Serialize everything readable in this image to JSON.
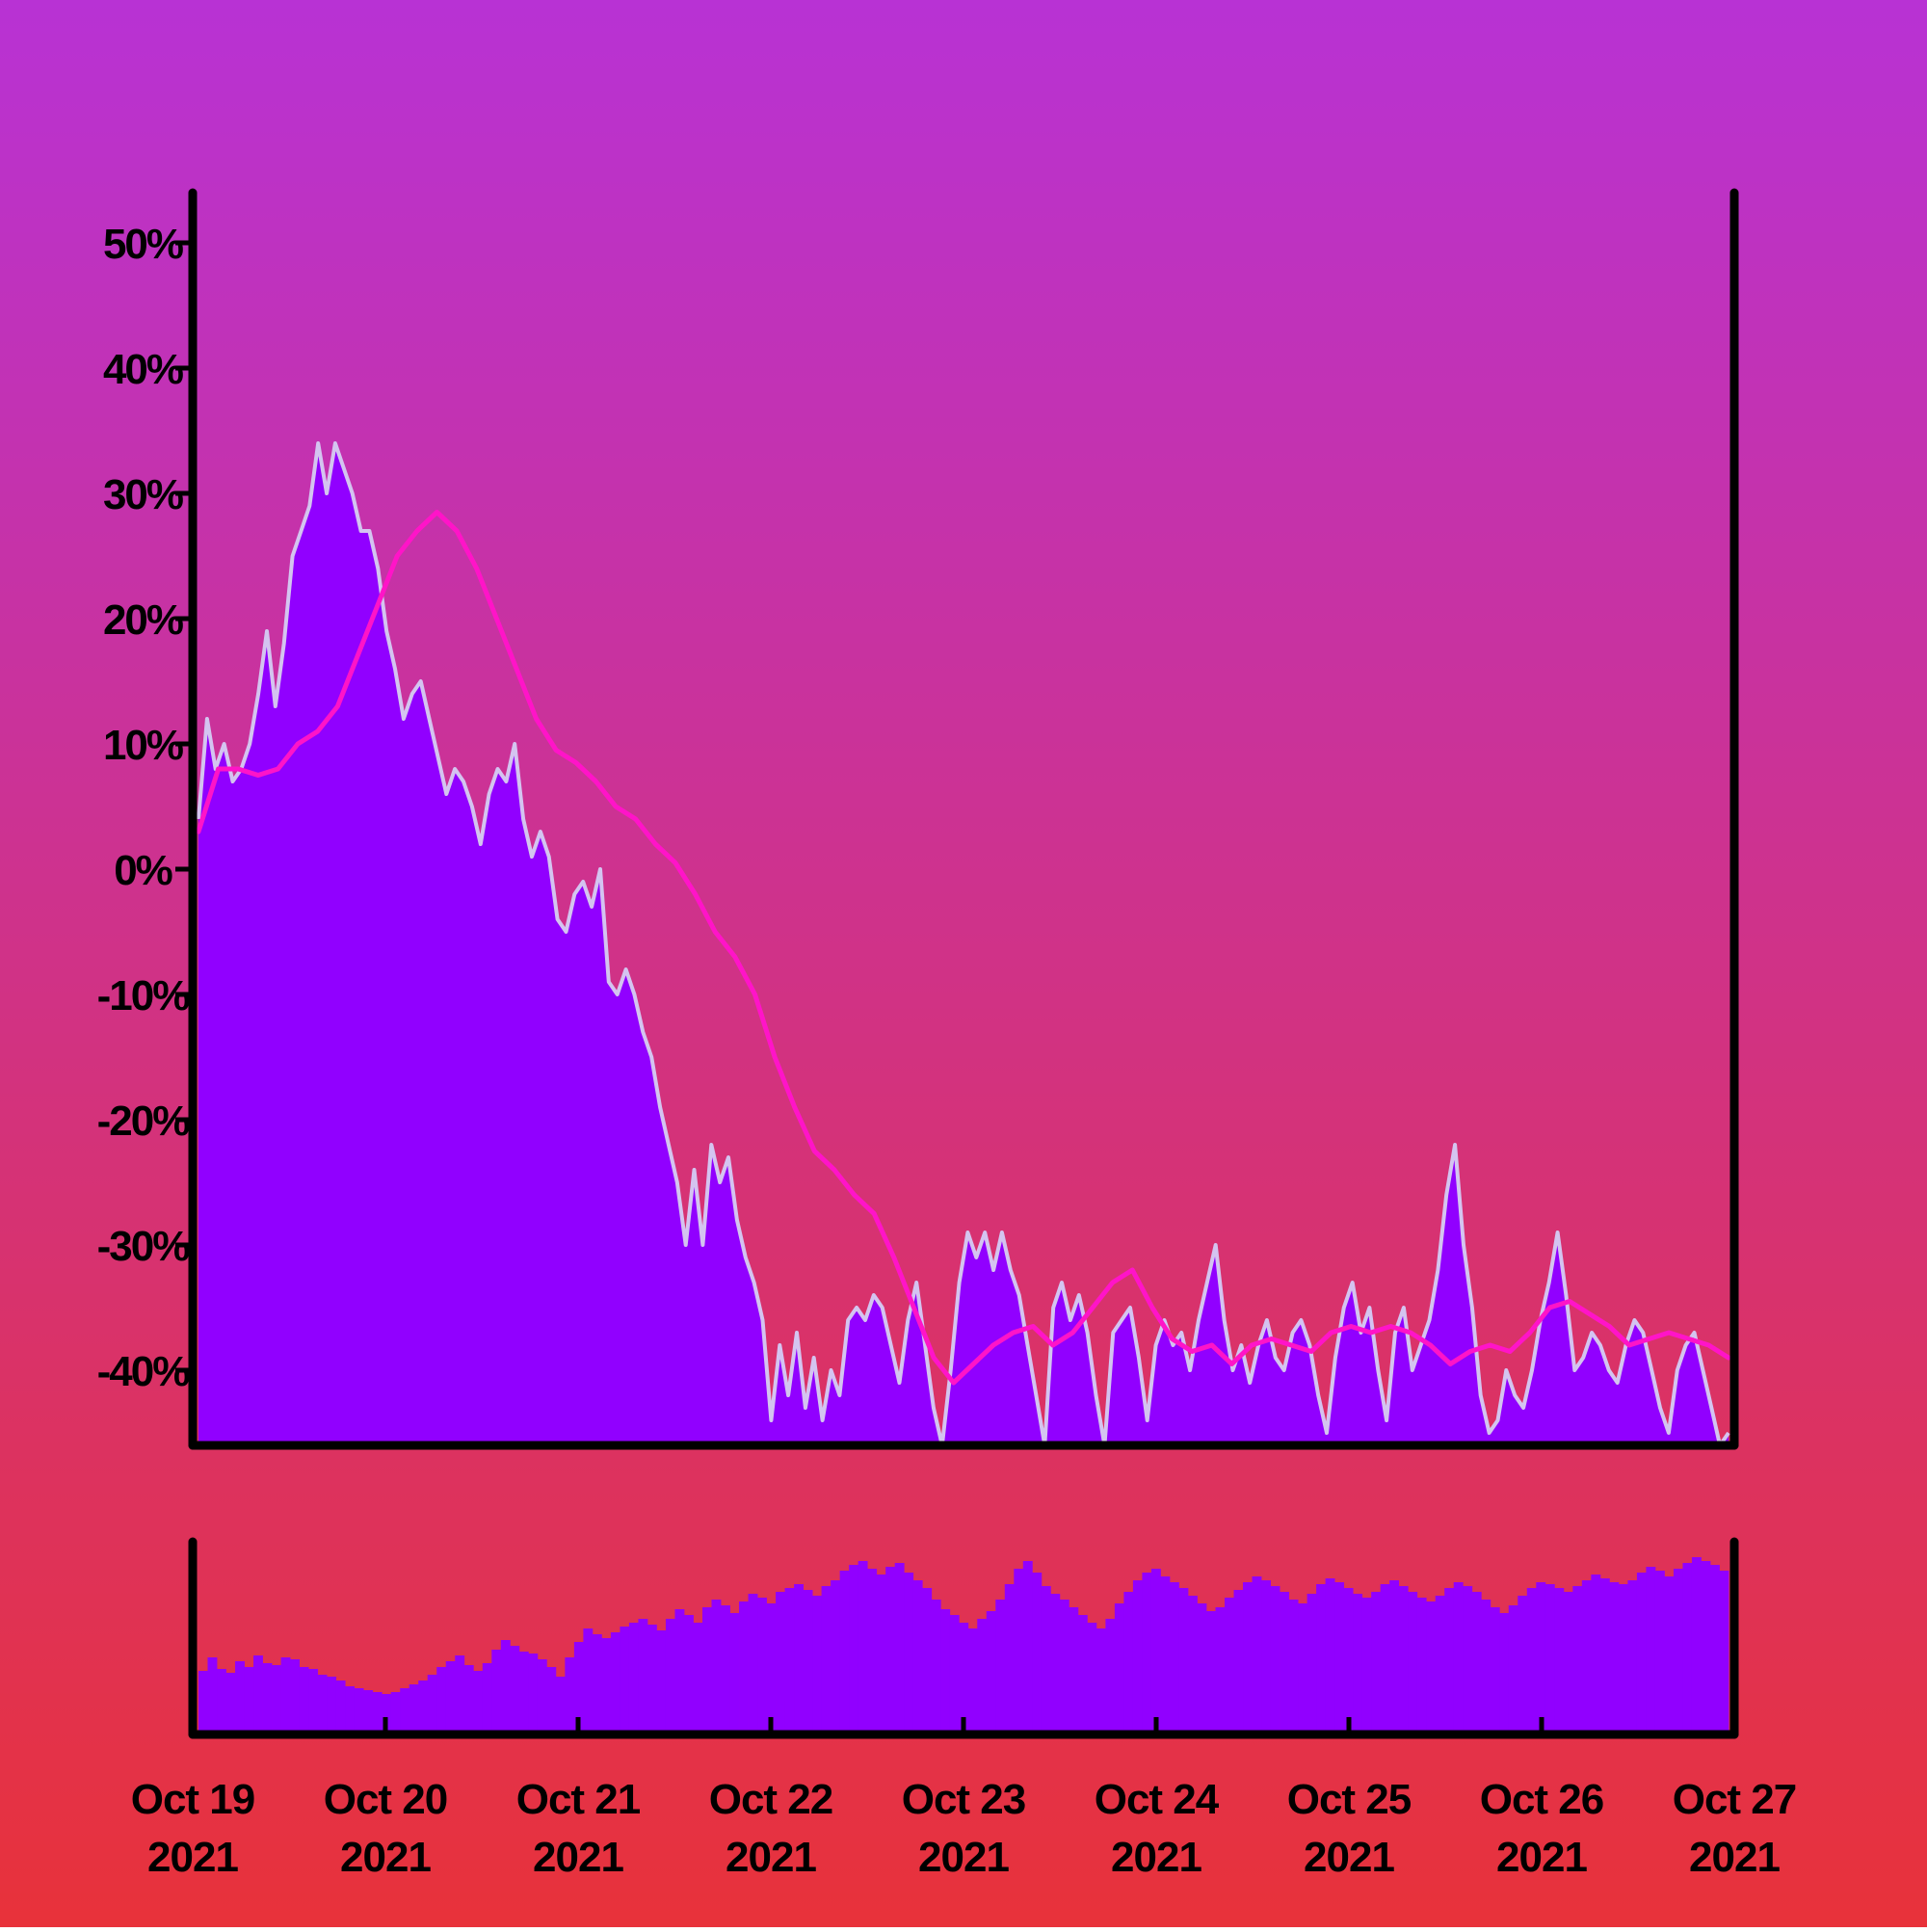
{
  "colors": {
    "background_top": "#b832d4",
    "background_bottom": "#e8323a",
    "area_fill": "#9100ff",
    "price_line": "#d4c4f0",
    "moving_average": "#ff14c8",
    "volume_bar": "#9100ff",
    "axis": "#000000"
  },
  "chart_data": {
    "type": "area",
    "price_panel": {
      "y_tick_labels": [
        "50%",
        "40%",
        "30%",
        "20%",
        "10%",
        "0%",
        "-10%",
        "-20%",
        "-30%",
        "-40%"
      ],
      "y_tick_values": [
        50,
        40,
        30,
        20,
        10,
        0,
        -10,
        -20,
        -30,
        -40
      ],
      "ylim": [
        -46,
        54
      ],
      "x_date_range": [
        "2021-10-19",
        "2021-10-27"
      ],
      "series": [
        {
          "type": "area",
          "values_pct": [
            4,
            12,
            8,
            10,
            7,
            8,
            10,
            14,
            19,
            13,
            18,
            25,
            27,
            29,
            34,
            30,
            34,
            32,
            30,
            27,
            27,
            24,
            19,
            16,
            12,
            14,
            15,
            12,
            9,
            6,
            8,
            7,
            5,
            2,
            6,
            8,
            7,
            10,
            4,
            1,
            3,
            1,
            -4,
            -5,
            -2,
            -1,
            -3,
            0,
            -9,
            -10,
            -8,
            -10,
            -13,
            -15,
            -19,
            -22,
            -25,
            -30,
            -24,
            -30,
            -22,
            -25,
            -23,
            -28,
            -31,
            -33,
            -36,
            -44,
            -38,
            -42,
            -37,
            -43,
            -39,
            -44,
            -40,
            -42,
            -36,
            -35,
            -36,
            -34,
            -35,
            -38,
            -41,
            -36,
            -33,
            -38,
            -43,
            -46,
            -40,
            -33,
            -29,
            -31,
            -29,
            -32,
            -29,
            -32,
            -34,
            -38,
            -42,
            -46,
            -35,
            -33,
            -36,
            -34,
            -37,
            -42,
            -46,
            -37,
            -36,
            -35,
            -39,
            -44,
            -38,
            -36,
            -38,
            -37,
            -40,
            -36,
            -33,
            -30,
            -36,
            -40,
            -38,
            -41,
            -38,
            -36,
            -39,
            -40,
            -37,
            -36,
            -38,
            -42,
            -45,
            -39,
            -35,
            -33,
            -37,
            -35,
            -40,
            -44,
            -37,
            -35,
            -40,
            -38,
            -36,
            -32,
            -26,
            -22,
            -30,
            -35,
            -42,
            -45,
            -44,
            -40,
            -42,
            -43,
            -40,
            -36,
            -33,
            -29,
            -34,
            -40,
            -39,
            -37,
            -38,
            -40,
            -41,
            -38,
            -36,
            -37,
            -40,
            -43,
            -45,
            -40,
            -38,
            -37,
            -40,
            -43,
            -46,
            -45
          ]
        },
        {
          "type": "line",
          "name": "",
          "values_pct": [
            3,
            8,
            8,
            7.5,
            8,
            10,
            11,
            13,
            17,
            21,
            25,
            27,
            28.5,
            27,
            24,
            20,
            16,
            12,
            9.5,
            8.5,
            7,
            5,
            4,
            2,
            0.5,
            -2,
            -5,
            -7,
            -10,
            -15,
            -19,
            -22.5,
            -24,
            -26,
            -27.5,
            -31,
            -35,
            -39,
            -41,
            -39.5,
            -38,
            -37,
            -36.5,
            -38,
            -37,
            -35,
            -33,
            -32,
            -35,
            -37.5,
            -38.5,
            -38,
            -39.5,
            -38,
            -37.5,
            -38,
            -38.5,
            -37,
            -36.5,
            -37,
            -36.5,
            -37,
            -38,
            -39.5,
            -38.5,
            -38,
            -38.5,
            -37,
            -35,
            -34.5,
            -35.5,
            -36.5,
            -38,
            -37.5,
            -37,
            -37.5,
            -38,
            -39
          ]
        }
      ]
    },
    "volume_panel": {
      "series": [
        {
          "type": "bar",
          "values_relative": [
            0.33,
            0.4,
            0.34,
            0.32,
            0.38,
            0.35,
            0.41,
            0.37,
            0.36,
            0.4,
            0.39,
            0.35,
            0.34,
            0.31,
            0.3,
            0.28,
            0.25,
            0.24,
            0.23,
            0.22,
            0.21,
            0.22,
            0.24,
            0.26,
            0.28,
            0.31,
            0.35,
            0.38,
            0.41,
            0.36,
            0.33,
            0.37,
            0.44,
            0.49,
            0.46,
            0.43,
            0.42,
            0.39,
            0.35,
            0.3,
            0.4,
            0.48,
            0.55,
            0.52,
            0.5,
            0.53,
            0.56,
            0.58,
            0.6,
            0.57,
            0.54,
            0.6,
            0.65,
            0.62,
            0.58,
            0.66,
            0.7,
            0.67,
            0.63,
            0.69,
            0.73,
            0.71,
            0.68,
            0.74,
            0.76,
            0.78,
            0.75,
            0.72,
            0.77,
            0.8,
            0.85,
            0.88,
            0.9,
            0.86,
            0.83,
            0.87,
            0.89,
            0.84,
            0.8,
            0.76,
            0.7,
            0.65,
            0.62,
            0.58,
            0.55,
            0.6,
            0.64,
            0.7,
            0.78,
            0.86,
            0.9,
            0.84,
            0.77,
            0.73,
            0.7,
            0.66,
            0.62,
            0.58,
            0.55,
            0.6,
            0.68,
            0.74,
            0.8,
            0.84,
            0.86,
            0.82,
            0.79,
            0.76,
            0.72,
            0.68,
            0.64,
            0.66,
            0.71,
            0.75,
            0.79,
            0.82,
            0.8,
            0.77,
            0.74,
            0.7,
            0.68,
            0.73,
            0.78,
            0.81,
            0.79,
            0.76,
            0.73,
            0.71,
            0.74,
            0.78,
            0.8,
            0.77,
            0.74,
            0.71,
            0.69,
            0.72,
            0.76,
            0.79,
            0.77,
            0.74,
            0.7,
            0.66,
            0.63,
            0.67,
            0.72,
            0.76,
            0.79,
            0.78,
            0.76,
            0.74,
            0.77,
            0.8,
            0.83,
            0.81,
            0.79,
            0.78,
            0.8,
            0.84,
            0.87,
            0.85,
            0.82,
            0.86,
            0.89,
            0.92,
            0.9,
            0.88,
            0.85
          ]
        }
      ]
    },
    "x_tick_labels": [
      {
        "line1": "Oct 19",
        "line2": "2021"
      },
      {
        "line1": "Oct 20",
        "line2": "2021"
      },
      {
        "line1": "Oct 21",
        "line2": "2021"
      },
      {
        "line1": "Oct 22",
        "line2": "2021"
      },
      {
        "line1": "Oct 23",
        "line2": "2021"
      },
      {
        "line1": "Oct 24",
        "line2": "2021"
      },
      {
        "line1": "Oct 25",
        "line2": "2021"
      },
      {
        "line1": "Oct 26",
        "line2": "2021"
      },
      {
        "line1": "Oct 27",
        "line2": "2021"
      }
    ],
    "grid": false,
    "legend": "none"
  }
}
